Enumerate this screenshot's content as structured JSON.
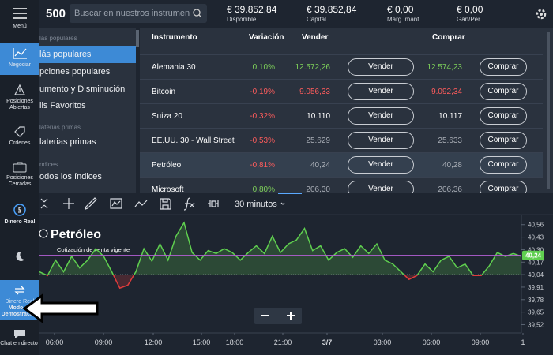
{
  "topbar": {
    "logo": "500",
    "search_placeholder": "Buscar en nuestros instrumen",
    "stats": [
      {
        "value": "€ 39.852,84",
        "label": "Disponible"
      },
      {
        "value": "€ 39.852,84",
        "label": "Capital"
      },
      {
        "value": "€ 0,00",
        "label": "Marg. mant."
      },
      {
        "value": "€ 0,00",
        "label": "Gan/Pér"
      }
    ]
  },
  "sidebar": {
    "menu": "Menú",
    "trade": "Negociar",
    "open_positions": "Posiciones Abiertas",
    "orders": "Ordenes",
    "closed_positions": "Posiciones Cerradas",
    "real_money": "Dinero Real",
    "mode_toggle": [
      "Dinero Real",
      "Modo de Demostración"
    ],
    "chat": "Chat en directo"
  },
  "menu": {
    "items": [
      {
        "label": "lás populares",
        "kind": "header"
      },
      {
        "label": "lás populares",
        "kind": "active"
      },
      {
        "label": "pciones populares",
        "kind": "item"
      },
      {
        "label": "umento y Disminución",
        "kind": "item"
      },
      {
        "label": "lis Favoritos",
        "kind": "item"
      },
      {
        "label": "laterias primas",
        "kind": "header"
      },
      {
        "label": "laterias primas",
        "kind": "item"
      },
      {
        "label": "ndices",
        "kind": "header"
      },
      {
        "label": "odos los índices",
        "kind": "item"
      }
    ]
  },
  "table": {
    "headers": [
      "Instrumento",
      "Variación",
      "Vender",
      "Comprar"
    ],
    "sell_button": "Vender",
    "buy_button": "Comprar",
    "rows": [
      {
        "instrument": "Alemania 30",
        "change": "0,10%",
        "sell": "12.572,26",
        "buy": "12.574,23",
        "change_color": "#7fd35a",
        "price_color": "#7fd35a"
      },
      {
        "instrument": "Bitcoin",
        "change": "-0,19%",
        "sell": "9.056,33",
        "buy": "9.092,34",
        "change_color": "#ff5c5c",
        "price_color": "#ff5c5c"
      },
      {
        "instrument": "Suiza 20",
        "change": "-0,32%",
        "sell": "10.110",
        "buy": "10.117",
        "change_color": "#ff5c5c",
        "price_color": "#ffffff"
      },
      {
        "instrument": "EE.UU. 30 - Wall Street",
        "change": "-0,53%",
        "sell": "25.629",
        "buy": "25.633",
        "change_color": "#ff5c5c",
        "price_color": "#a8adb5"
      },
      {
        "instrument": "Petróleo",
        "change": "-0,81%",
        "sell": "40,24",
        "buy": "40,28",
        "change_color": "#ff5c5c",
        "price_color": "#a8adb5",
        "selected": true
      },
      {
        "instrument": "Microsoft",
        "change": "0,80%",
        "sell": "206,30",
        "buy": "206,36",
        "change_color": "#7fd35a",
        "price_color": "#a8adb5"
      }
    ]
  },
  "toolbar": {
    "interval": "30 minutos"
  },
  "chart_data": {
    "type": "line",
    "title": "Petróleo",
    "annotation": "Cotización de venta vigente",
    "color": "#5fcf4f",
    "down_color": "#e03b3b",
    "current_color": "#b65fd6",
    "baseline": 40.04,
    "current": 40.24,
    "current_label": "40,24",
    "ylim": [
      39.45,
      40.64
    ],
    "yticks": [
      {
        "value": 40.56,
        "label": "40,56"
      },
      {
        "value": 40.43,
        "label": "40,43"
      },
      {
        "value": 40.3,
        "label": "40,30"
      },
      {
        "value": 40.17,
        "label": "40,17"
      },
      {
        "value": 40.04,
        "label": "40,04"
      },
      {
        "value": 39.91,
        "label": "39,91"
      },
      {
        "value": 39.78,
        "label": "39,78"
      },
      {
        "value": 39.65,
        "label": "39,65"
      },
      {
        "value": 39.52,
        "label": "39,52"
      }
    ],
    "xticks": [
      "06:00",
      "09:00",
      "12:00",
      "15:00",
      "18:00",
      "21:00",
      "3/7",
      "03:00",
      "06:00",
      "09:00",
      "1"
    ],
    "values": [
      40.07,
      40.03,
      40.19,
      40.07,
      40.23,
      40.11,
      40.19,
      40.31,
      40.23,
      40.07,
      39.9,
      39.93,
      40.07,
      40.31,
      40.18,
      40.36,
      40.19,
      40.44,
      40.58,
      40.27,
      40.19,
      40.29,
      40.26,
      40.31,
      40.27,
      40.19,
      40.27,
      40.34,
      40.26,
      40.44,
      40.27,
      40.36,
      40.4,
      40.52,
      40.29,
      40.34,
      40.19,
      40.27,
      40.31,
      40.22,
      40.34,
      40.26,
      40.36,
      40.19,
      40.15,
      40.07,
      39.99,
      40.03,
      40.15,
      40.07,
      40.19,
      40.23,
      40.11,
      40.15,
      40.03,
      40.03,
      40.13,
      40.27,
      40.23,
      40.26,
      40.23
    ]
  }
}
